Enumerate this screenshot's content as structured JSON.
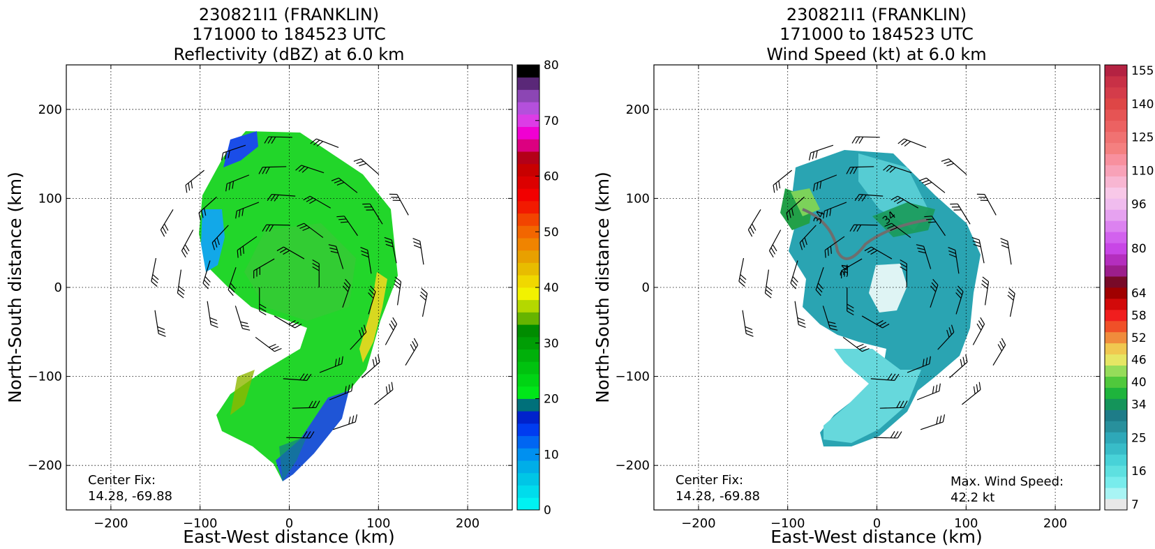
{
  "chart_data": [
    {
      "type": "heatmap",
      "panel": "reflectivity",
      "title": [
        "230821I1 (FRANKLIN)",
        "171000 to 184523 UTC",
        "Reflectivity (dBZ) at 6.0 km"
      ],
      "xlabel": "East-West distance (km)",
      "ylabel": "North-South distance (km)",
      "xlim": [
        -250,
        250
      ],
      "ylim": [
        -250,
        250
      ],
      "x_ticks": [
        -200,
        -100,
        0,
        100,
        200
      ],
      "y_ticks": [
        -200,
        -100,
        0,
        100,
        200
      ],
      "grid": true,
      "annotations": [
        {
          "text": "Center Fix:",
          "anchor": "bottom-left",
          "line": 1
        },
        {
          "text": "14.28, -69.88",
          "anchor": "bottom-left",
          "line": 2
        }
      ],
      "colorbar": {
        "min": 0,
        "max": 80,
        "step": 2.5,
        "tick_values": [
          0,
          10,
          20,
          30,
          40,
          50,
          60,
          70,
          80
        ],
        "colors": [
          "#00f2f2",
          "#00dcec",
          "#00c6e6",
          "#00aee8",
          "#0090f0",
          "#0066f2",
          "#003cf0",
          "#0022cc",
          "#00707a",
          "#00e619",
          "#00d414",
          "#00c20f",
          "#00b00a",
          "#009e05",
          "#008c00",
          "#66b400",
          "#b4d800",
          "#f2f200",
          "#f0d800",
          "#e8bc00",
          "#e8a000",
          "#f08400",
          "#f26600",
          "#f24400",
          "#f21a00",
          "#f20000",
          "#dc0000",
          "#c80000",
          "#b40018",
          "#dc0080",
          "#f000d2",
          "#dc3ce6",
          "#b450dc",
          "#8c46b4",
          "#5a2878",
          "#000000"
        ]
      }
    },
    {
      "type": "heatmap",
      "panel": "wind-speed",
      "title": [
        "230821I1 (FRANKLIN)",
        "171000 to 184523 UTC",
        "Wind Speed (kt) at 6.0 km"
      ],
      "xlabel": "East-West distance (km)",
      "ylabel": "North-South distance (km)",
      "xlim": [
        -250,
        250
      ],
      "ylim": [
        -250,
        250
      ],
      "x_ticks": [
        -200,
        -100,
        0,
        100,
        200
      ],
      "y_ticks": [
        -200,
        -100,
        0,
        100,
        200
      ],
      "grid": true,
      "contour_label": "34",
      "annotations": [
        {
          "text": "Center Fix:",
          "anchor": "bottom-left",
          "line": 1
        },
        {
          "text": "14.28, -69.88",
          "anchor": "bottom-left",
          "line": 2
        },
        {
          "text": "Max. Wind Speed:",
          "anchor": "bottom-right",
          "line": 1
        },
        {
          "text": "42.2 kt",
          "anchor": "bottom-right",
          "line": 2
        }
      ],
      "max_wind_speed_kt": 42.2,
      "colorbar": {
        "levels": [
          7,
          10,
          13,
          16,
          19,
          22,
          25,
          28,
          31,
          34,
          37,
          40,
          43,
          46,
          49,
          52,
          55,
          58,
          61,
          64,
          68,
          72,
          76,
          80,
          84,
          88,
          92,
          96,
          101,
          106,
          110,
          115,
          120,
          125,
          130,
          135,
          140,
          145,
          150,
          155,
          160
        ],
        "tick_values": [
          7,
          16,
          25,
          34,
          40,
          46,
          52,
          58,
          64,
          80,
          96,
          110,
          125,
          140,
          155
        ],
        "colors": [
          "#e8e8e8",
          "#a8f4f4",
          "#78ecec",
          "#5ee0e0",
          "#48d2d8",
          "#38bcc8",
          "#2ea8b8",
          "#28909c",
          "#1e7c88",
          "#14945a",
          "#1eb43c",
          "#50c83c",
          "#96dc5a",
          "#e6e664",
          "#f0c850",
          "#f08c3c",
          "#f05028",
          "#f01e1e",
          "#d20a0a",
          "#a00000",
          "#780a28",
          "#9c1e8c",
          "#b42ebe",
          "#c846e6",
          "#d262ee",
          "#dc82f0",
          "#e6a2f0",
          "#f0bcee",
          "#f8c8e8",
          "#f8b6d2",
          "#f8a2b8",
          "#f8909e",
          "#f48080",
          "#f07272",
          "#ec6262",
          "#e65454",
          "#de4646",
          "#d43c4a",
          "#c83046",
          "#b42242"
        ]
      }
    }
  ]
}
